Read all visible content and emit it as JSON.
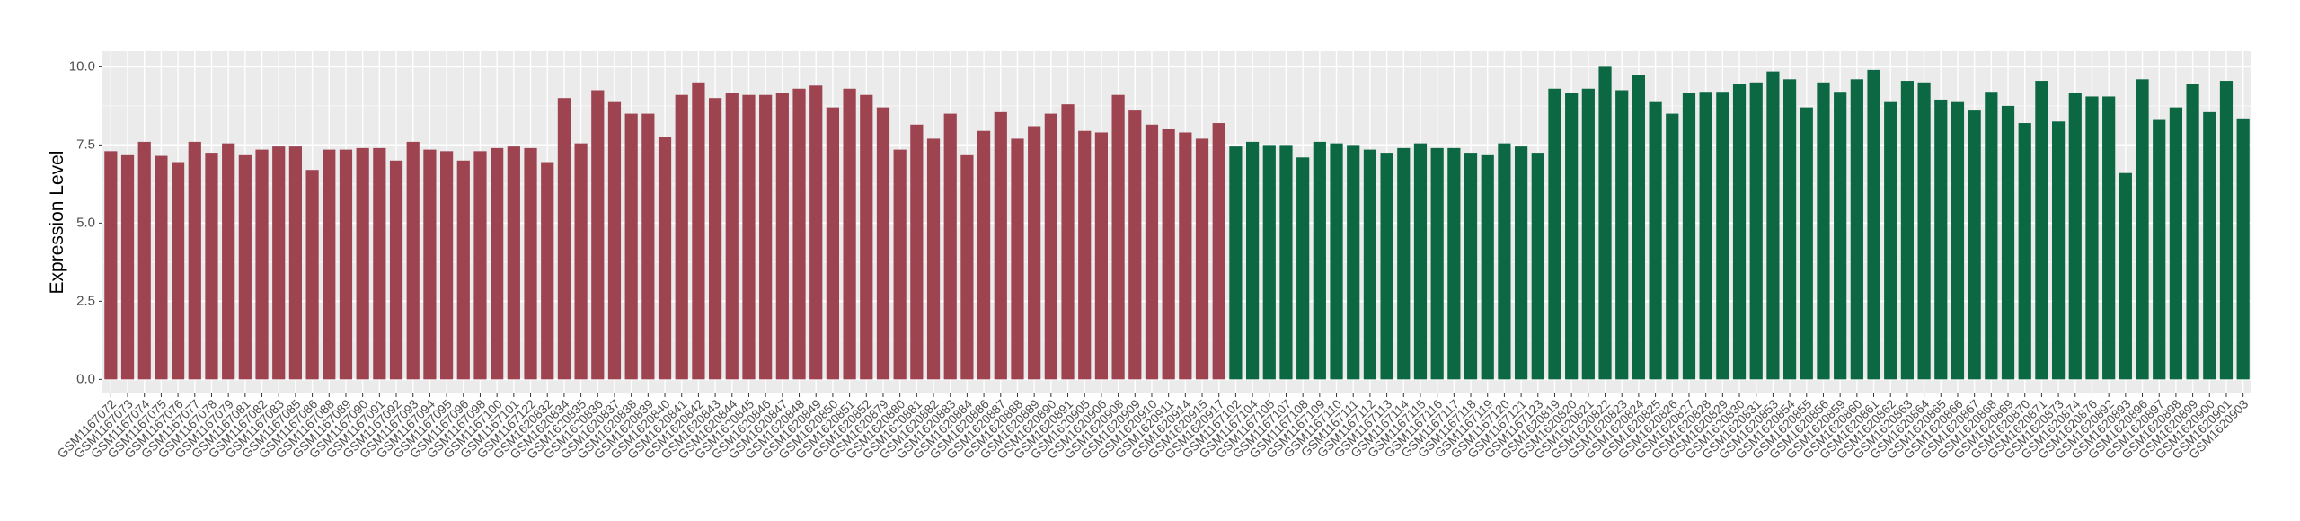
{
  "chart_data": {
    "type": "bar",
    "y_label": "Expression Level",
    "categories": [
      "GSM1167072",
      "GSM1167073",
      "GSM1167074",
      "GSM1167075",
      "GSM1167076",
      "GSM1167077",
      "GSM1167078",
      "GSM1167079",
      "GSM1167081",
      "GSM1167082",
      "GSM1167083",
      "GSM1167085",
      "GSM1167086",
      "GSM1167088",
      "GSM1167089",
      "GSM1167090",
      "GSM1167091",
      "GSM1167092",
      "GSM1167093",
      "GSM1167094",
      "GSM1167095",
      "GSM1167096",
      "GSM1167098",
      "GSM1167100",
      "GSM1167101",
      "GSM1167122",
      "GSM1620832",
      "GSM1620834",
      "GSM1620835",
      "GSM1620836",
      "GSM1620837",
      "GSM1620838",
      "GSM1620839",
      "GSM1620840",
      "GSM1620841",
      "GSM1620842",
      "GSM1620843",
      "GSM1620844",
      "GSM1620845",
      "GSM1620846",
      "GSM1620847",
      "GSM1620848",
      "GSM1620849",
      "GSM1620850",
      "GSM1620851",
      "GSM1620852",
      "GSM1620879",
      "GSM1620880",
      "GSM1620881",
      "GSM1620882",
      "GSM1620883",
      "GSM1620884",
      "GSM1620886",
      "GSM1620887",
      "GSM1620888",
      "GSM1620889",
      "GSM1620890",
      "GSM1620891",
      "GSM1620905",
      "GSM1620906",
      "GSM1620908",
      "GSM1620909",
      "GSM1620910",
      "GSM1620911",
      "GSM1620914",
      "GSM1620915",
      "GSM1620917",
      "GSM1167102",
      "GSM1167104",
      "GSM1167105",
      "GSM1167107",
      "GSM1167108",
      "GSM1167109",
      "GSM1167110",
      "GSM1167111",
      "GSM1167112",
      "GSM1167113",
      "GSM1167114",
      "GSM1167115",
      "GSM1167116",
      "GSM1167117",
      "GSM1167118",
      "GSM1167119",
      "GSM1167120",
      "GSM1167121",
      "GSM1167123",
      "GSM1620819",
      "GSM1620820",
      "GSM1620821",
      "GSM1620822",
      "GSM1620823",
      "GSM1620824",
      "GSM1620825",
      "GSM1620826",
      "GSM1620827",
      "GSM1620828",
      "GSM1620829",
      "GSM1620830",
      "GSM1620831",
      "GSM1620853",
      "GSM1620854",
      "GSM1620855",
      "GSM1620856",
      "GSM1620859",
      "GSM1620860",
      "GSM1620861",
      "GSM1620862",
      "GSM1620863",
      "GSM1620864",
      "GSM1620865",
      "GSM1620866",
      "GSM1620867",
      "GSM1620868",
      "GSM1620869",
      "GSM1620870",
      "GSM1620871",
      "GSM1620873",
      "GSM1620874",
      "GSM1620876",
      "GSM1620892",
      "GSM1620893",
      "GSM1620896",
      "GSM1620897",
      "GSM1620898",
      "GSM1620899",
      "GSM1620900",
      "GSM1620901",
      "GSM1620903"
    ],
    "values": [
      7.3,
      7.2,
      7.6,
      7.15,
      6.95,
      7.6,
      7.25,
      7.55,
      7.2,
      7.35,
      7.45,
      7.45,
      6.7,
      7.35,
      7.35,
      7.4,
      7.4,
      7.0,
      7.6,
      7.35,
      7.3,
      7.0,
      7.3,
      7.4,
      7.45,
      7.4,
      6.95,
      9.0,
      7.55,
      9.25,
      8.9,
      8.5,
      8.5,
      7.75,
      9.1,
      9.5,
      9.0,
      9.15,
      9.1,
      9.1,
      9.15,
      9.3,
      9.4,
      8.7,
      9.3,
      9.1,
      8.7,
      7.35,
      8.15,
      7.7,
      8.5,
      7.2,
      7.95,
      8.55,
      7.7,
      8.1,
      8.5,
      8.8,
      7.95,
      7.9,
      9.1,
      8.6,
      8.15,
      8.0,
      7.9,
      7.7,
      8.2,
      7.45,
      7.6,
      7.5,
      7.5,
      7.1,
      7.6,
      7.55,
      7.5,
      7.35,
      7.25,
      7.4,
      7.55,
      7.4,
      7.4,
      7.25,
      7.2,
      7.55,
      7.45,
      7.25,
      9.3,
      9.15,
      9.3,
      10.0,
      9.25,
      9.75,
      8.9,
      8.5,
      9.15,
      9.2,
      9.2,
      9.45,
      9.5,
      9.85,
      9.6,
      8.7,
      9.5,
      9.2,
      9.6,
      9.9,
      8.9,
      9.55,
      9.5,
      8.95,
      8.9,
      8.6,
      9.2,
      8.75,
      8.2,
      9.55,
      8.25,
      9.15,
      9.05,
      9.05,
      6.6,
      9.6,
      8.3,
      8.7,
      9.45,
      8.55,
      9.55,
      8.35
    ],
    "group_colors": [
      {
        "color": "#9e4451",
        "count": 67
      },
      {
        "color": "#0b6842",
        "count": 61
      }
    ],
    "ylim": [
      -0.45,
      10.5
    ],
    "yticks": [
      {
        "value": 0,
        "label": "0.0"
      },
      {
        "value": 2.5,
        "label": "2.5"
      },
      {
        "value": 5,
        "label": "5.0"
      },
      {
        "value": 7.5,
        "label": "7.5"
      },
      {
        "value": 10,
        "label": "10.0"
      }
    ],
    "grid": true
  }
}
